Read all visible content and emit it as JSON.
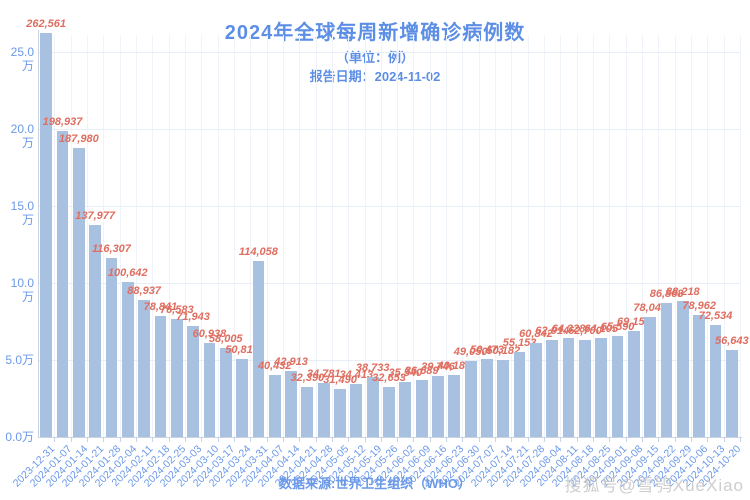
{
  "title": "2024年全球每周新增确诊病例数",
  "subtitle": "（单位：例）",
  "report_date": "报告日期：2024-11-02",
  "source": "数据来源:世界卫生组织（WHO）",
  "watermark": "搜狐号@雪鸮XueXiao",
  "colors": {
    "title_blue": "#5c8ee6",
    "axis_text_blue": "#6b99e8",
    "bar_fill": "#a9c1e1",
    "value_label_red": "#df6e60",
    "grid_line": "#e7eef8",
    "grid_line_vertical": "#eff3fa",
    "axis_line": "#c9d3e3",
    "watermark_gray": "#c9c9c9"
  },
  "chart_data": {
    "type": "bar",
    "title": "2024年全球每周新增确诊病例数",
    "subtitle": "（单位：例）",
    "xlabel": "",
    "ylabel": "",
    "legend": null,
    "grid": true,
    "ylim": [
      0,
      250000
    ],
    "y_tick_values": [
      0,
      50000,
      100000,
      150000,
      200000,
      250000
    ],
    "y_tick_labels": [
      "0.0万",
      "5.0万",
      "10.0万",
      "15.0万",
      "20.0万",
      "25.0万"
    ],
    "categories": [
      "2023-12-31",
      "2024-01-07",
      "2024-01-14",
      "2024-01-21",
      "2024-01-28",
      "2024-02-04",
      "2024-02-11",
      "2024-02-18",
      "2024-02-25",
      "2024-03-03",
      "2024-03-10",
      "2024-03-17",
      "2024-03-24",
      "2024-03-31",
      "2024-04-07",
      "2024-04-14",
      "2024-04-21",
      "2024-04-28",
      "2024-05-05",
      "2024-05-12",
      "2024-05-19",
      "2024-05-26",
      "2024-06-02",
      "2024-06-09",
      "2024-06-16",
      "2024-06-23",
      "2024-06-30",
      "2024-07-07",
      "2024-07-14",
      "2024-07-21",
      "2024-07-28",
      "2024-08-04",
      "2024-08-11",
      "2024-08-18",
      "2024-08-25",
      "2024-09-01",
      "2024-09-08",
      "2024-09-15",
      "2024-09-22",
      "2024-09-29",
      "2024-10-06",
      "2024-10-13",
      "2024-10-20"
    ],
    "values": [
      262561,
      198937,
      187980,
      137977,
      116307,
      100642,
      88937,
      78841,
      76583,
      71943,
      60938,
      58005,
      50816,
      114058,
      40432,
      42913,
      32390,
      34781,
      31490,
      34413,
      38733,
      32653,
      35540,
      36689,
      39746,
      40186,
      49050,
      50473,
      50182,
      55153,
      60842,
      62914,
      64328,
      62700,
      64105,
      65590,
      69152,
      78043,
      86868,
      88218,
      78962,
      72534,
      56643
    ],
    "value_labels": [
      "262,561",
      "198,937",
      "187,980",
      "137,977",
      "116,307",
      "100,642",
      "88,937",
      "78,841",
      "76,583",
      "71,943",
      "60,938",
      "58,005",
      "50,816",
      "114,058",
      "40,432",
      "42,913",
      "32,390",
      "34,781",
      "31,490",
      "34,413",
      "38,733",
      "32,653",
      "35,540",
      "36,689",
      "39,746",
      "40,186",
      "49,050",
      "50,473",
      "50,182",
      "55,153",
      "60,842",
      "62,914",
      "64,328",
      "62,700",
      "64,105",
      "65,590",
      "69,152",
      "78,043",
      "86,868",
      "88,218",
      "78,962",
      "72,534",
      "56,643"
    ]
  }
}
